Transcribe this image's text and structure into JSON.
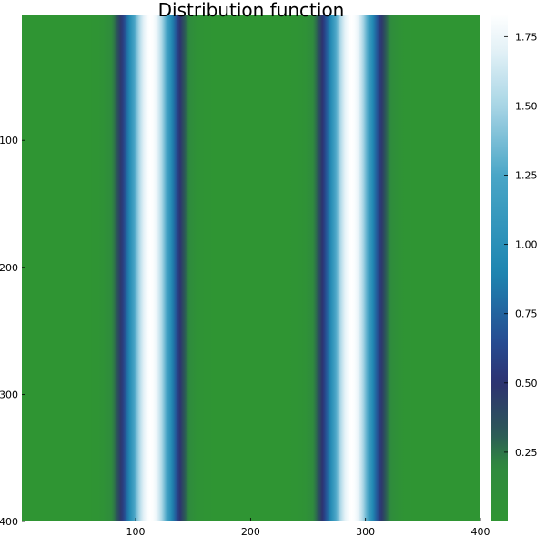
{
  "chart_data": {
    "type": "heatmap",
    "title": "Distribution function",
    "xlabel": "",
    "ylabel": "",
    "xlim": [
      1,
      400
    ],
    "ylim": [
      400,
      1
    ],
    "x_ticks": [
      100,
      200,
      300,
      400
    ],
    "x_tick_labels": [
      "100",
      "200",
      "300",
      "400"
    ],
    "y_ticks": [
      100,
      200,
      300,
      400
    ],
    "y_tick_labels": [
      "100",
      "200",
      "300",
      "400"
    ],
    "grid": false,
    "colorbar": {
      "range": [
        0.0,
        1.83
      ],
      "ticks": [
        0.25,
        0.5,
        0.75,
        1.0,
        1.25,
        1.5,
        1.75
      ],
      "tick_labels": [
        "0.25",
        "0.50",
        "0.75",
        "1.00",
        "1.25",
        "1.50",
        "1.75"
      ]
    },
    "colormap": [
      {
        "v": 0.0,
        "color": "#2f9533"
      },
      {
        "v": 0.2,
        "color": "#2f8a3e"
      },
      {
        "v": 0.32,
        "color": "#2c5858"
      },
      {
        "v": 0.5,
        "color": "#2d3271"
      },
      {
        "v": 0.65,
        "color": "#264c92"
      },
      {
        "v": 0.9,
        "color": "#1d86b1"
      },
      {
        "v": 1.25,
        "color": "#4aa6c7"
      },
      {
        "v": 1.5,
        "color": "#a8d5e5"
      },
      {
        "v": 1.7,
        "color": "#e3f1f7"
      },
      {
        "v": 1.83,
        "color": "#ffffff"
      }
    ],
    "profile": {
      "description_axis": "x",
      "peaks": [
        {
          "center": 113,
          "width": 17,
          "amplitude": 1.83
        },
        {
          "center": 288,
          "width": 17,
          "amplitude": 1.83
        }
      ]
    }
  }
}
